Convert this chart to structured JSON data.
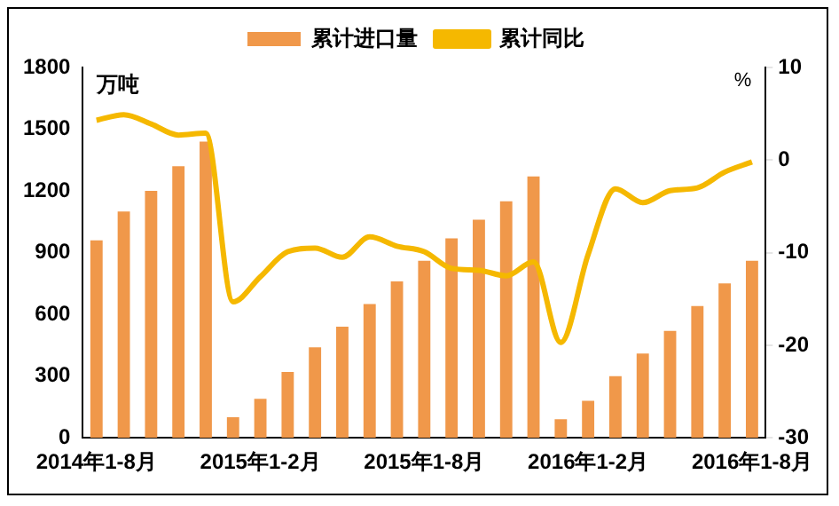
{
  "chart_data": {
    "type": "bar",
    "ylabel": "万吨",
    "y2label": "%",
    "categories": [
      "2014年1-8月",
      null,
      null,
      null,
      null,
      null,
      "2015年1-2月",
      null,
      null,
      null,
      null,
      null,
      "2015年1-8月",
      null,
      null,
      null,
      null,
      null,
      "2016年1-2月",
      null,
      null,
      null,
      null,
      null,
      "2016年1-8月"
    ],
    "series": [
      {
        "name": "累计进口量",
        "color": "#f0984a",
        "values": [
          960,
          1100,
          1200,
          1320,
          1440,
          100,
          190,
          320,
          440,
          540,
          650,
          760,
          860,
          970,
          1060,
          1150,
          1270,
          90,
          180,
          300,
          410,
          520,
          640,
          750,
          860
        ]
      },
      {
        "name": "累计同比",
        "type": "line",
        "axis": "y2",
        "color": "#f5b800",
        "values": [
          4.3,
          4.9,
          3.9,
          2.7,
          2.9,
          -15.3,
          -12.6,
          -9.9,
          -9.5,
          -10.5,
          -8.3,
          -9.3,
          -9.9,
          -11.7,
          -11.9,
          -12.5,
          -11.0,
          -19.7,
          -10.2,
          -3.1,
          -4.6,
          -3.3,
          -3.0,
          -1.3,
          -0.2
        ]
      }
    ],
    "ylim": [
      0,
      1800
    ],
    "yticks": [
      0,
      300,
      600,
      900,
      1200,
      1500,
      1800
    ],
    "y2lim": [
      -30,
      10
    ],
    "y2ticks": [
      -30,
      -20,
      -10,
      0,
      10
    ],
    "grid": false,
    "legend": "top",
    "marker": "none",
    "line_style": "solid"
  }
}
